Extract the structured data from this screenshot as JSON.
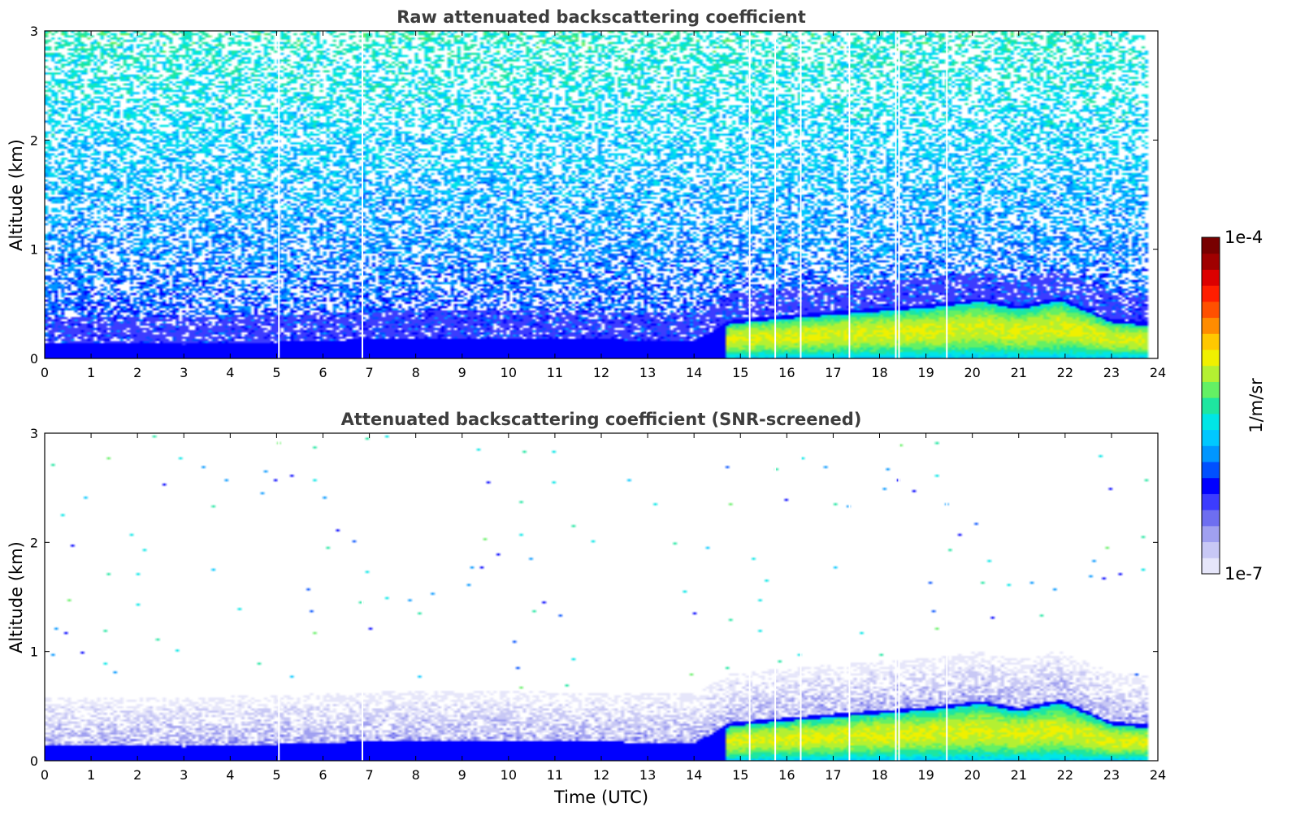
{
  "chart_data": [
    {
      "type": "heatmap",
      "title": "Raw attenuated backscattering coefficient",
      "xlabel": "",
      "ylabel": "Altitude (km)",
      "xlim": [
        0,
        24
      ],
      "ylim": [
        0,
        3
      ],
      "xticks": [
        0,
        1,
        2,
        3,
        4,
        5,
        6,
        7,
        8,
        9,
        10,
        11,
        12,
        13,
        14,
        15,
        16,
        17,
        18,
        19,
        20,
        21,
        22,
        23,
        24
      ],
      "yticks": [
        0,
        1,
        2,
        3
      ],
      "data_end_hour": 23.8,
      "noise": "high",
      "boundary_layer_top_km": [
        {
          "t": 0,
          "h": 0.14
        },
        {
          "t": 3,
          "h": 0.13
        },
        {
          "t": 5,
          "h": 0.15
        },
        {
          "t": 8,
          "h": 0.19
        },
        {
          "t": 11,
          "h": 0.18
        },
        {
          "t": 14,
          "h": 0.16
        },
        {
          "t": 14.8,
          "h": 0.35
        },
        {
          "t": 17,
          "h": 0.43
        },
        {
          "t": 18,
          "h": 0.46
        },
        {
          "t": 19,
          "h": 0.49
        },
        {
          "t": 20.2,
          "h": 0.55
        },
        {
          "t": 21,
          "h": 0.48
        },
        {
          "t": 21.9,
          "h": 0.56
        },
        {
          "t": 23,
          "h": 0.36
        },
        {
          "t": 23.8,
          "h": 0.33
        }
      ],
      "data_gaps_hour": [
        5.05,
        6.85,
        15.2,
        15.75,
        16.3,
        17.35,
        18.35,
        18.42,
        19.45
      ]
    },
    {
      "type": "heatmap",
      "title": "Attenuated backscattering coefficient (SNR-screened)",
      "xlabel": "Time (UTC)",
      "ylabel": "Altitude (km)",
      "xlim": [
        0,
        24
      ],
      "ylim": [
        0,
        3
      ],
      "xticks": [
        0,
        1,
        2,
        3,
        4,
        5,
        6,
        7,
        8,
        9,
        10,
        11,
        12,
        13,
        14,
        15,
        16,
        17,
        18,
        19,
        20,
        21,
        22,
        23,
        24
      ],
      "yticks": [
        0,
        1,
        2,
        3
      ],
      "data_end_hour": 23.8,
      "noise": "screened",
      "boundary_layer_top_km": [
        {
          "t": 0,
          "h": 0.14
        },
        {
          "t": 3,
          "h": 0.13
        },
        {
          "t": 5,
          "h": 0.15
        },
        {
          "t": 8,
          "h": 0.19
        },
        {
          "t": 11,
          "h": 0.18
        },
        {
          "t": 14,
          "h": 0.16
        },
        {
          "t": 14.8,
          "h": 0.35
        },
        {
          "t": 17,
          "h": 0.43
        },
        {
          "t": 18,
          "h": 0.46
        },
        {
          "t": 19,
          "h": 0.49
        },
        {
          "t": 20.2,
          "h": 0.55
        },
        {
          "t": 21,
          "h": 0.48
        },
        {
          "t": 21.9,
          "h": 0.56
        },
        {
          "t": 23,
          "h": 0.36
        },
        {
          "t": 23.8,
          "h": 0.33
        }
      ],
      "data_gaps_hour": [
        5.05,
        6.85,
        15.2,
        15.75,
        16.3,
        17.35,
        18.35,
        18.42,
        19.45
      ]
    }
  ],
  "colorbar": {
    "max_label": "1e-4",
    "min_label": "1e-7",
    "unit_label": "1/m/sr",
    "colors": [
      "#e6e6fa",
      "#c8c8f5",
      "#a0a0f0",
      "#6e6ef0",
      "#3c3cff",
      "#0000ff",
      "#0050ff",
      "#0096ff",
      "#00c8ff",
      "#00e6e6",
      "#1ee6a0",
      "#64f064",
      "#b4f032",
      "#f0f000",
      "#ffc800",
      "#ff8c00",
      "#ff5000",
      "#ff1e00",
      "#dc0000",
      "#a00000",
      "#780000"
    ]
  }
}
